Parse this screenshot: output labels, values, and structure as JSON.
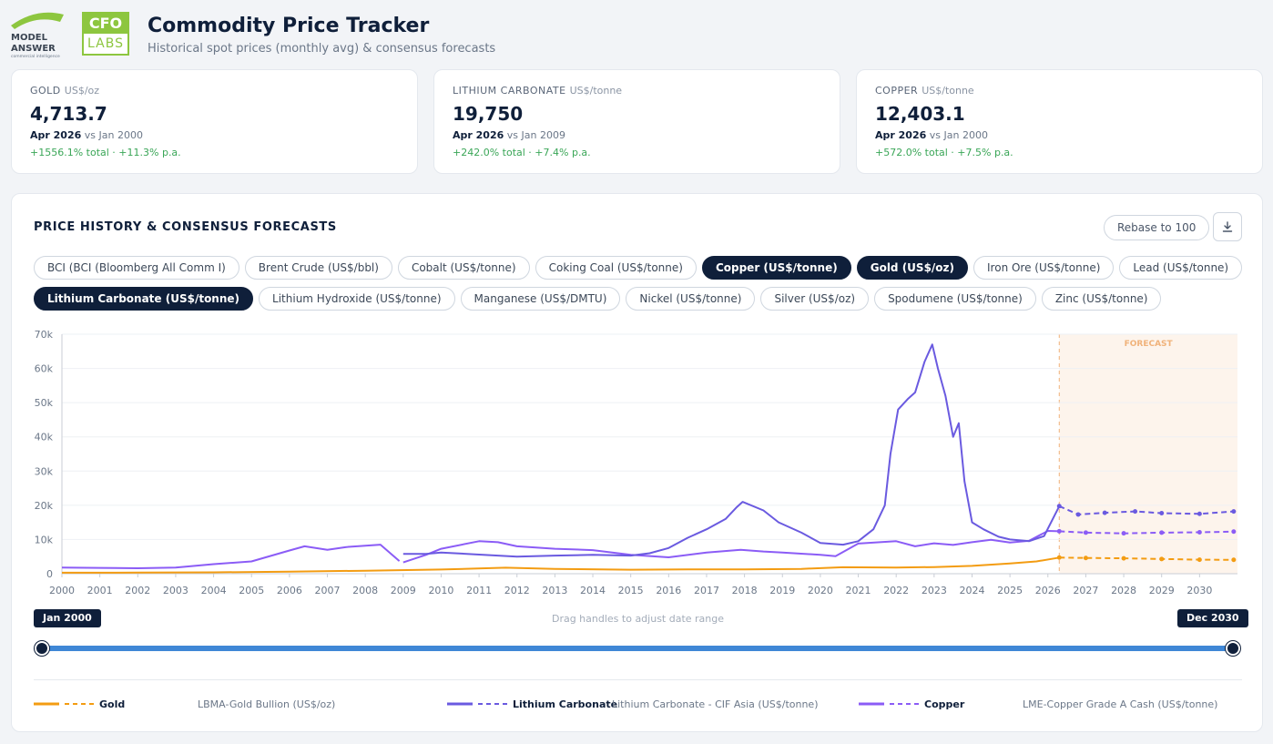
{
  "header": {
    "logo1_lines": [
      "MODEL",
      "ANSWER",
      "commercial intelligence"
    ],
    "logo2_top": "CFO",
    "logo2_bottom": "LABS",
    "title": "Commodity Price Tracker",
    "subtitle": "Historical spot prices (monthly avg) & consensus forecasts"
  },
  "kpis": [
    {
      "name": "GOLD",
      "unit": "US$/oz",
      "value": "4,713.7",
      "date": "Apr 2026",
      "vs": "vs Jan 2000",
      "change": "+1556.1% total · +11.3% p.a."
    },
    {
      "name": "LITHIUM CARBONATE",
      "unit": "US$/tonne",
      "value": "19,750",
      "date": "Apr 2026",
      "vs": "vs Jan 2009",
      "change": "+242.0% total · +7.4% p.a."
    },
    {
      "name": "COPPER",
      "unit": "US$/tonne",
      "value": "12,403.1",
      "date": "Apr 2026",
      "vs": "vs Jan 2000",
      "change": "+572.0% total · +7.5% p.a."
    }
  ],
  "panel": {
    "title": "PRICE HISTORY & CONSENSUS FORECASTS",
    "rebase_label": "Rebase to 100",
    "download_icon": "download-icon"
  },
  "chips_row1": [
    {
      "label": "BCI (BCI (Bloomberg All Comm I)",
      "active": false
    },
    {
      "label": "Brent Crude (US$/bbl)",
      "active": false
    },
    {
      "label": "Cobalt (US$/tonne)",
      "active": false
    },
    {
      "label": "Coking Coal (US$/tonne)",
      "active": false
    },
    {
      "label": "Copper (US$/tonne)",
      "active": true
    },
    {
      "label": "Gold (US$/oz)",
      "active": true
    },
    {
      "label": "Iron Ore (US$/tonne)",
      "active": false
    },
    {
      "label": "Lead (US$/tonne)",
      "active": false
    }
  ],
  "chips_row2": [
    {
      "label": "Lithium Carbonate (US$/tonne)",
      "active": true
    },
    {
      "label": "Lithium Hydroxide (US$/tonne)",
      "active": false
    },
    {
      "label": "Manganese (US$/DMTU)",
      "active": false
    },
    {
      "label": "Nickel (US$/tonne)",
      "active": false
    },
    {
      "label": "Silver (US$/oz)",
      "active": false
    },
    {
      "label": "Spodumene (US$/tonne)",
      "active": false
    },
    {
      "label": "Zinc (US$/tonne)",
      "active": false
    }
  ],
  "colors": {
    "gold": "#f39c12",
    "lithium": "#6a5ae0",
    "copper": "#8b5cf6",
    "forecast_band": "#fdf4ec",
    "forecast_label": "#f0b27a"
  },
  "range": {
    "start_label": "Jan 2000",
    "end_label": "Dec 2030",
    "hint": "Drag handles to adjust date range"
  },
  "legend": [
    {
      "name": "Gold",
      "source": "LBMA-Gold Bullion (US$/oz)"
    },
    {
      "name": "Lithium Carbonate",
      "source": "Lithium Carbonate - CIF Asia (US$/tonne)"
    },
    {
      "name": "Copper",
      "source": "LME-Copper Grade A Cash (US$/tonne)"
    }
  ],
  "chart_data": {
    "type": "line",
    "title": "PRICE HISTORY & CONSENSUS FORECASTS",
    "xlabel": "",
    "ylabel": "",
    "xlim": [
      2000,
      2031
    ],
    "ylim": [
      0,
      70000
    ],
    "x_ticks": [
      "2000",
      "2001",
      "2002",
      "2003",
      "2004",
      "2005",
      "2006",
      "2007",
      "2008",
      "2009",
      "2010",
      "2011",
      "2012",
      "2013",
      "2014",
      "2015",
      "2016",
      "2017",
      "2018",
      "2019",
      "2020",
      "2021",
      "2022",
      "2023",
      "2024",
      "2025",
      "2026",
      "2027",
      "2028",
      "2029",
      "2030"
    ],
    "y_ticks": [
      "0",
      "10k",
      "20k",
      "30k",
      "40k",
      "50k",
      "60k",
      "70k"
    ],
    "y_tick_values": [
      0,
      10000,
      20000,
      30000,
      40000,
      50000,
      60000,
      70000
    ],
    "forecast_label": "FORECAST",
    "forecast_start": 2026.3,
    "series": [
      {
        "name": "Gold",
        "key": "gold",
        "history": [
          [
            2000,
            280
          ],
          [
            2002,
            310
          ],
          [
            2004,
            410
          ],
          [
            2006,
            600
          ],
          [
            2008,
            870
          ],
          [
            2010,
            1220
          ],
          [
            2011.7,
            1750
          ],
          [
            2013,
            1410
          ],
          [
            2015,
            1160
          ],
          [
            2016.5,
            1280
          ],
          [
            2018,
            1270
          ],
          [
            2019.5,
            1400
          ],
          [
            2020.6,
            1900
          ],
          [
            2022,
            1800
          ],
          [
            2023,
            1940
          ],
          [
            2024,
            2300
          ],
          [
            2025,
            3000
          ],
          [
            2025.7,
            3600
          ],
          [
            2026.3,
            4713.7
          ]
        ],
        "forecast": [
          [
            2026.3,
            4713.7
          ],
          [
            2027,
            4600
          ],
          [
            2028,
            4500
          ],
          [
            2029,
            4300
          ],
          [
            2030,
            4100
          ],
          [
            2030.9,
            4050
          ]
        ]
      },
      {
        "name": "Lithium Carbonate",
        "key": "lithium",
        "history": [
          [
            2009,
            5800
          ],
          [
            2009.6,
            5800
          ],
          [
            2010,
            6200
          ],
          [
            2011,
            5600
          ],
          [
            2012,
            5000
          ],
          [
            2013,
            5300
          ],
          [
            2014,
            5500
          ],
          [
            2015,
            5300
          ],
          [
            2015.5,
            6000
          ],
          [
            2016,
            7500
          ],
          [
            2016.5,
            10500
          ],
          [
            2017,
            13000
          ],
          [
            2017.5,
            16000
          ],
          [
            2017.8,
            19500
          ],
          [
            2017.95,
            21000
          ],
          [
            2018.5,
            18500
          ],
          [
            2018.9,
            15000
          ],
          [
            2019.5,
            12000
          ],
          [
            2020,
            9000
          ],
          [
            2020.6,
            8500
          ],
          [
            2021,
            9500
          ],
          [
            2021.4,
            13000
          ],
          [
            2021.7,
            20000
          ],
          [
            2021.85,
            35000
          ],
          [
            2022.05,
            48000
          ],
          [
            2022.3,
            51000
          ],
          [
            2022.5,
            53000
          ],
          [
            2022.75,
            62000
          ],
          [
            2022.95,
            67000
          ],
          [
            2023.1,
            60000
          ],
          [
            2023.3,
            52000
          ],
          [
            2023.5,
            40000
          ],
          [
            2023.65,
            44000
          ],
          [
            2023.8,
            27000
          ],
          [
            2024,
            15000
          ],
          [
            2024.3,
            13000
          ],
          [
            2024.7,
            10800
          ],
          [
            2025,
            10000
          ],
          [
            2025.5,
            9500
          ],
          [
            2025.9,
            11000
          ],
          [
            2026.3,
            19750
          ]
        ],
        "forecast": [
          [
            2026.3,
            19750
          ],
          [
            2026.8,
            17300
          ],
          [
            2027.5,
            17800
          ],
          [
            2028.3,
            18200
          ],
          [
            2029,
            17700
          ],
          [
            2030,
            17500
          ],
          [
            2030.9,
            18200
          ]
        ]
      },
      {
        "name": "Copper",
        "key": "copper",
        "history": [
          [
            2000,
            1800
          ],
          [
            2001,
            1700
          ],
          [
            2002,
            1600
          ],
          [
            2003,
            1800
          ],
          [
            2004,
            2800
          ],
          [
            2005,
            3600
          ],
          [
            2006,
            6800
          ],
          [
            2006.4,
            8000
          ],
          [
            2007,
            7000
          ],
          [
            2007.5,
            7800
          ],
          [
            2008.4,
            8500
          ],
          [
            2008.9,
            3700
          ],
          [
            2009,
            3300
          ],
          [
            2009.6,
            5500
          ],
          [
            2010,
            7300
          ],
          [
            2011,
            9500
          ],
          [
            2011.5,
            9200
          ],
          [
            2012,
            8000
          ],
          [
            2013,
            7300
          ],
          [
            2014,
            6900
          ],
          [
            2015,
            5500
          ],
          [
            2016,
            4800
          ],
          [
            2017,
            6200
          ],
          [
            2017.9,
            7000
          ],
          [
            2018.5,
            6500
          ],
          [
            2019,
            6200
          ],
          [
            2020,
            5500
          ],
          [
            2020.4,
            5100
          ],
          [
            2021,
            8800
          ],
          [
            2022,
            9500
          ],
          [
            2022.5,
            8000
          ],
          [
            2023,
            8900
          ],
          [
            2023.5,
            8400
          ],
          [
            2024,
            9200
          ],
          [
            2024.5,
            9900
          ],
          [
            2025,
            9100
          ],
          [
            2025.5,
            9600
          ],
          [
            2026,
            12500
          ],
          [
            2026.3,
            12403.1
          ]
        ],
        "forecast": [
          [
            2026.3,
            12403.1
          ],
          [
            2027,
            12000
          ],
          [
            2028,
            11800
          ],
          [
            2029,
            12000
          ],
          [
            2030,
            12100
          ],
          [
            2030.9,
            12300
          ]
        ]
      }
    ]
  }
}
